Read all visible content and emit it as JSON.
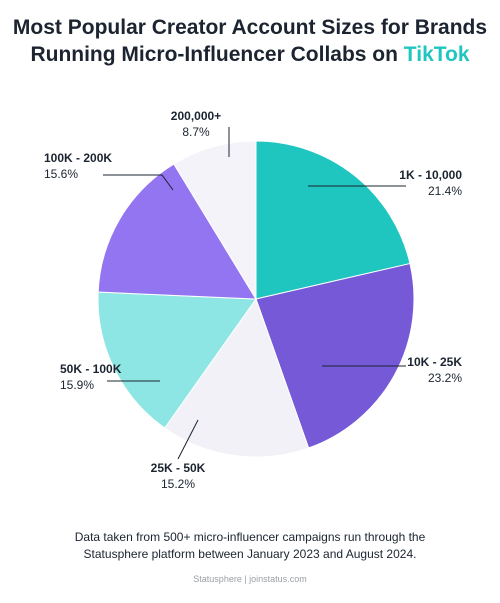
{
  "title": {
    "line1": "Most Popular Creator Account Sizes for Brands",
    "line2_prefix": "Running Micro-Influencer Collabs on ",
    "line2_brand": "TikTok"
  },
  "chart_data": {
    "type": "pie",
    "slices": [
      {
        "label": "1K - 10,000",
        "value": 21.4,
        "display": "21.4%",
        "color": "#1fc6bf"
      },
      {
        "label": "10K - 25K",
        "value": 23.2,
        "display": "23.2%",
        "color": "#7659d6"
      },
      {
        "label": "25K - 50K",
        "value": 15.2,
        "display": "15.2%",
        "color": "#f1f1f7"
      },
      {
        "label": "50K - 100K",
        "value": 15.9,
        "display": "15.9%",
        "color": "#8de6e3"
      },
      {
        "label": "100K - 200K",
        "value": 15.6,
        "display": "15.6%",
        "color": "#9374f1"
      },
      {
        "label": "200,000+",
        "value": 8.7,
        "display": "8.7%",
        "color": "#f4f3f9"
      }
    ]
  },
  "note": {
    "line1": "Data taken from 500+ micro-influencer campaigns run through the",
    "line2": "Statusphere platform between January 2023 and August 2024."
  },
  "footer": "Statusphere | joinstatus.com"
}
